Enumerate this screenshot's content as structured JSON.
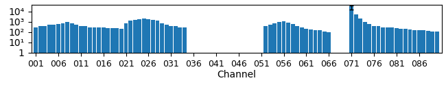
{
  "chart_data": {
    "type": "bar",
    "title": "",
    "x_label": "Channel",
    "categories": [
      "001",
      null,
      null,
      null,
      null,
      "006",
      null,
      null,
      null,
      null,
      "011",
      null,
      null,
      null,
      null,
      "016",
      null,
      null,
      null,
      null,
      "021",
      null,
      null,
      null,
      null,
      "026",
      null,
      null,
      null,
      null,
      "031",
      null,
      null,
      null,
      null,
      "036",
      null,
      null,
      null,
      null,
      "041",
      null,
      null,
      null,
      null,
      "046",
      null,
      null,
      null,
      null,
      "051",
      null,
      null,
      null,
      null,
      "056",
      null,
      null,
      null,
      null,
      "061",
      null,
      null,
      null,
      null,
      "066",
      null,
      null,
      null,
      null,
      "071",
      null,
      null,
      null,
      null,
      "076",
      null,
      null,
      null,
      null,
      "081",
      null,
      null,
      null,
      null,
      "086",
      null,
      null,
      null,
      null
    ],
    "values": [
      300,
      350,
      400,
      500,
      550,
      600,
      700,
      900,
      700,
      500,
      400,
      350,
      300,
      280,
      270,
      260,
      250,
      240,
      230,
      220,
      700,
      1200,
      1500,
      1800,
      2000,
      1800,
      1500,
      1200,
      700,
      500,
      400,
      350,
      300,
      280,
      1,
      1,
      1,
      1,
      1,
      1,
      1,
      1,
      1,
      1,
      1,
      1,
      1,
      1,
      1,
      1,
      1,
      350,
      500,
      700,
      900,
      1100,
      800,
      600,
      400,
      300,
      200,
      180,
      160,
      140,
      120,
      100,
      1,
      1,
      1,
      1,
      30000,
      5000,
      2000,
      1000,
      600,
      400,
      350,
      300,
      280,
      260,
      240,
      220,
      200,
      180,
      160,
      150,
      140,
      130,
      120,
      110
    ],
    "error_bars": [
      {
        "category": "071",
        "minus": 15000,
        "plus": 8000
      }
    ],
    "log": "y",
    "ylim": [
      1,
      40000
    ],
    "yticks": [
      1,
      {
        "value": 10,
        "label": "10¹"
      },
      {
        "value": 100,
        "label": "10²"
      },
      {
        "value": 1000,
        "label": "10³"
      },
      {
        "value": 10000,
        "label": "10⁴"
      }
    ],
    "grid": false
  }
}
